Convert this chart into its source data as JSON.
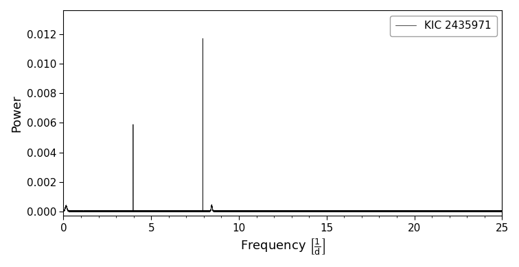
{
  "xlabel": "Frequency $\\left[\\frac{1}{\\mathrm{d}}\\right]$",
  "ylabel": "Power",
  "xlim": [
    0,
    25
  ],
  "ylim": [
    -0.0003,
    0.0136
  ],
  "legend_label": "KIC 2435971",
  "line_color": "#000000",
  "background_color": "#ffffff",
  "freq_peak1": 3.97,
  "power_peak1": 0.006,
  "freq_peak2": 7.94,
  "power_peak2": 0.01265,
  "freq_bump0": 0.15,
  "power_bump0": 0.00035,
  "freq_bump_side": 8.45,
  "power_bump_side": 0.0004,
  "noise_level": 1.5e-05,
  "yticks": [
    0.0,
    0.002,
    0.004,
    0.006,
    0.008,
    0.01,
    0.012
  ],
  "xticks": [
    0,
    5,
    10,
    15,
    20,
    25
  ]
}
